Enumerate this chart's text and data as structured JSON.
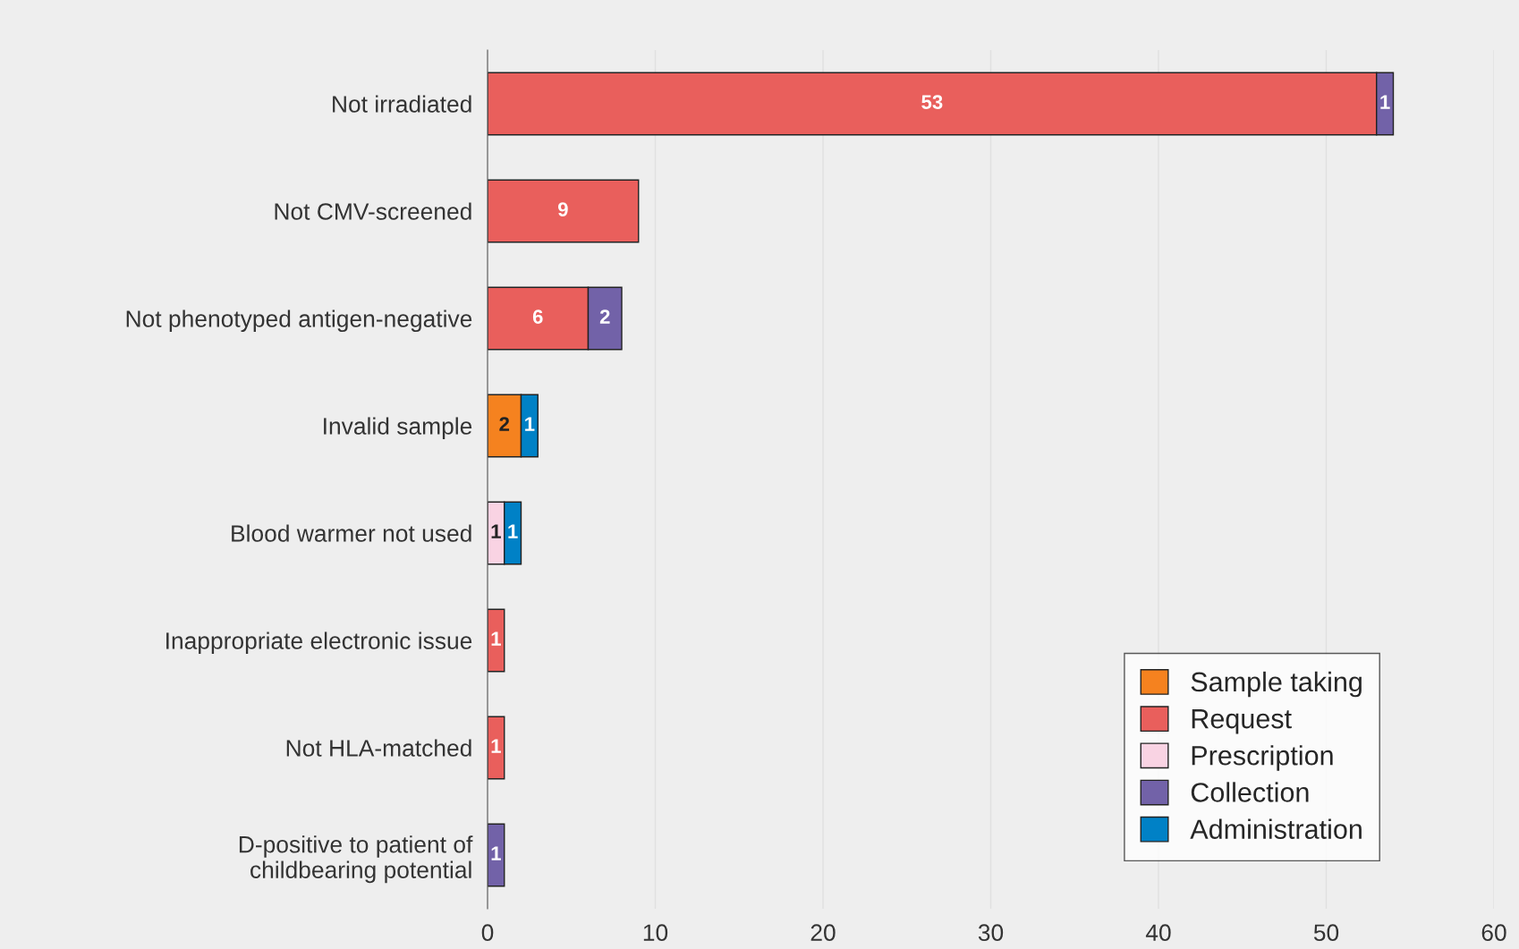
{
  "chart_data": {
    "type": "bar",
    "orientation": "horizontal",
    "stacked": true,
    "categories": [
      "Not irradiated",
      "Not CMV-screened",
      "Not phenotyped antigen-negative",
      "Invalid sample",
      "Blood warmer not used",
      "Inappropriate electronic issue",
      "Not HLA-matched",
      "D-positive to patient of\nchildbearing potential"
    ],
    "series": [
      {
        "name": "Sample taking",
        "color": "#f5821f",
        "values": [
          null,
          null,
          null,
          2,
          null,
          null,
          null,
          null
        ]
      },
      {
        "name": "Request",
        "color": "#e95f5c",
        "values": [
          53,
          9,
          6,
          null,
          null,
          1,
          1,
          null
        ]
      },
      {
        "name": "Prescription",
        "color": "#f9d3e3",
        "values": [
          null,
          null,
          null,
          null,
          1,
          null,
          null,
          null
        ]
      },
      {
        "name": "Collection",
        "color": "#7262a8",
        "values": [
          1,
          null,
          2,
          null,
          null,
          null,
          null,
          1
        ]
      },
      {
        "name": "Administration",
        "color": "#0081c6",
        "values": [
          null,
          null,
          null,
          1,
          1,
          null,
          null,
          null
        ]
      }
    ],
    "xlim": [
      0,
      60
    ],
    "xticks": [
      0,
      10,
      20,
      30,
      40,
      50,
      60
    ],
    "grid": "x",
    "legend": "bottom right",
    "data_labels": true
  }
}
